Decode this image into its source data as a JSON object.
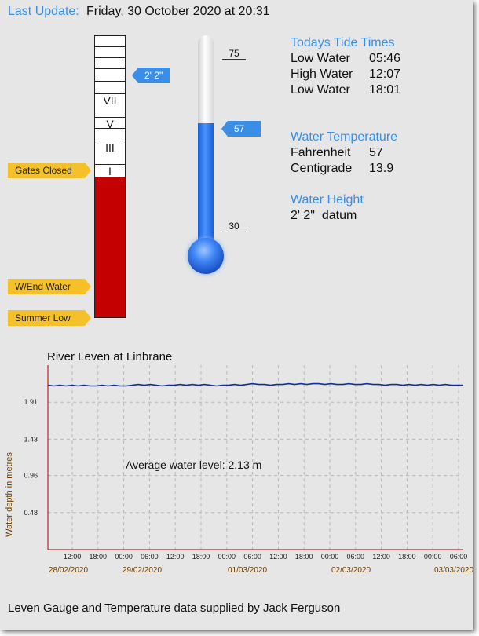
{
  "header": {
    "label": "Last Update:",
    "datetime": "Friday, 30 October 2020 at 20:31"
  },
  "gauge": {
    "labels": [
      "VII",
      "V",
      "III",
      "I"
    ],
    "markers": [
      {
        "text": "Gates Closed"
      },
      {
        "text": "W/End Water"
      },
      {
        "text": "Summer Low"
      }
    ],
    "level_tag": "2' 2\"",
    "level_fraction": 0.5
  },
  "thermometer": {
    "top_tick": "75",
    "bottom_tick": "30",
    "value_tag": "57",
    "value": 57,
    "min": 30,
    "max": 75
  },
  "tide": {
    "title": "Todays Tide Times",
    "rows": [
      {
        "label": "Low Water",
        "time": "05:46"
      },
      {
        "label": "High Water",
        "time": "12:07"
      },
      {
        "label": "Low Water",
        "time": "18:01"
      }
    ]
  },
  "water_temp": {
    "title": "Water Temperature",
    "rows": [
      {
        "label": "Fahrenheit",
        "value": "57"
      },
      {
        "label": "Centigrade",
        "value": "13.9"
      }
    ]
  },
  "water_height": {
    "title": "Water Height",
    "value": "2' 2\"  datum"
  },
  "chart_data": {
    "type": "line",
    "title": "River Leven at Linbrane",
    "ylabel": "Water depth in metres",
    "xlabel": "",
    "annotation": "Average water level: 2.13 m",
    "y_ticks": [
      "0.48",
      "0.96",
      "1.43",
      "1.91"
    ],
    "y_tick_values": [
      0.48,
      0.96,
      1.43,
      1.91
    ],
    "ylim": [
      0,
      2.39
    ],
    "time_ticks": [
      "12:00",
      "18:00",
      "00:00",
      "06:00",
      "12:00",
      "18:00",
      "00:00",
      "06:00",
      "12:00",
      "18:00",
      "00:00",
      "06:00",
      "12:00",
      "18:00",
      "00:00",
      "06:00"
    ],
    "date_labels": [
      "28/02/2020",
      "29/02/2020",
      "01/03/2020",
      "02/03/2020",
      "03/03/2020"
    ],
    "grid": true,
    "series": [
      {
        "values": [
          2.13,
          2.12,
          2.13,
          2.12,
          2.13,
          2.12,
          2.13,
          2.12,
          2.12,
          2.13,
          2.12,
          2.13,
          2.12,
          2.12,
          2.13,
          2.14,
          2.13,
          2.14,
          2.13,
          2.12,
          2.13,
          2.13,
          2.14,
          2.13,
          2.14,
          2.13,
          2.14,
          2.13,
          2.12,
          2.13,
          2.13,
          2.14,
          2.13,
          2.14,
          2.15,
          2.14,
          2.14,
          2.13,
          2.14,
          2.14,
          2.15,
          2.14,
          2.15,
          2.14,
          2.15,
          2.15,
          2.14,
          2.15,
          2.14,
          2.14,
          2.15,
          2.14,
          2.14,
          2.15,
          2.14,
          2.14,
          2.13,
          2.14,
          2.14,
          2.13,
          2.14,
          2.13,
          2.14,
          2.13,
          2.14,
          2.13,
          2.14,
          2.13,
          2.13,
          2.13
        ]
      }
    ]
  },
  "footer": "Leven Gauge and Temperature data supplied by Jack Ferguson",
  "colors": {
    "accent": "#3a8ee6",
    "gauge_fill": "#c40000",
    "marker": "#f5c12a",
    "line": "#0f2fa0",
    "axis": "#b00000"
  }
}
